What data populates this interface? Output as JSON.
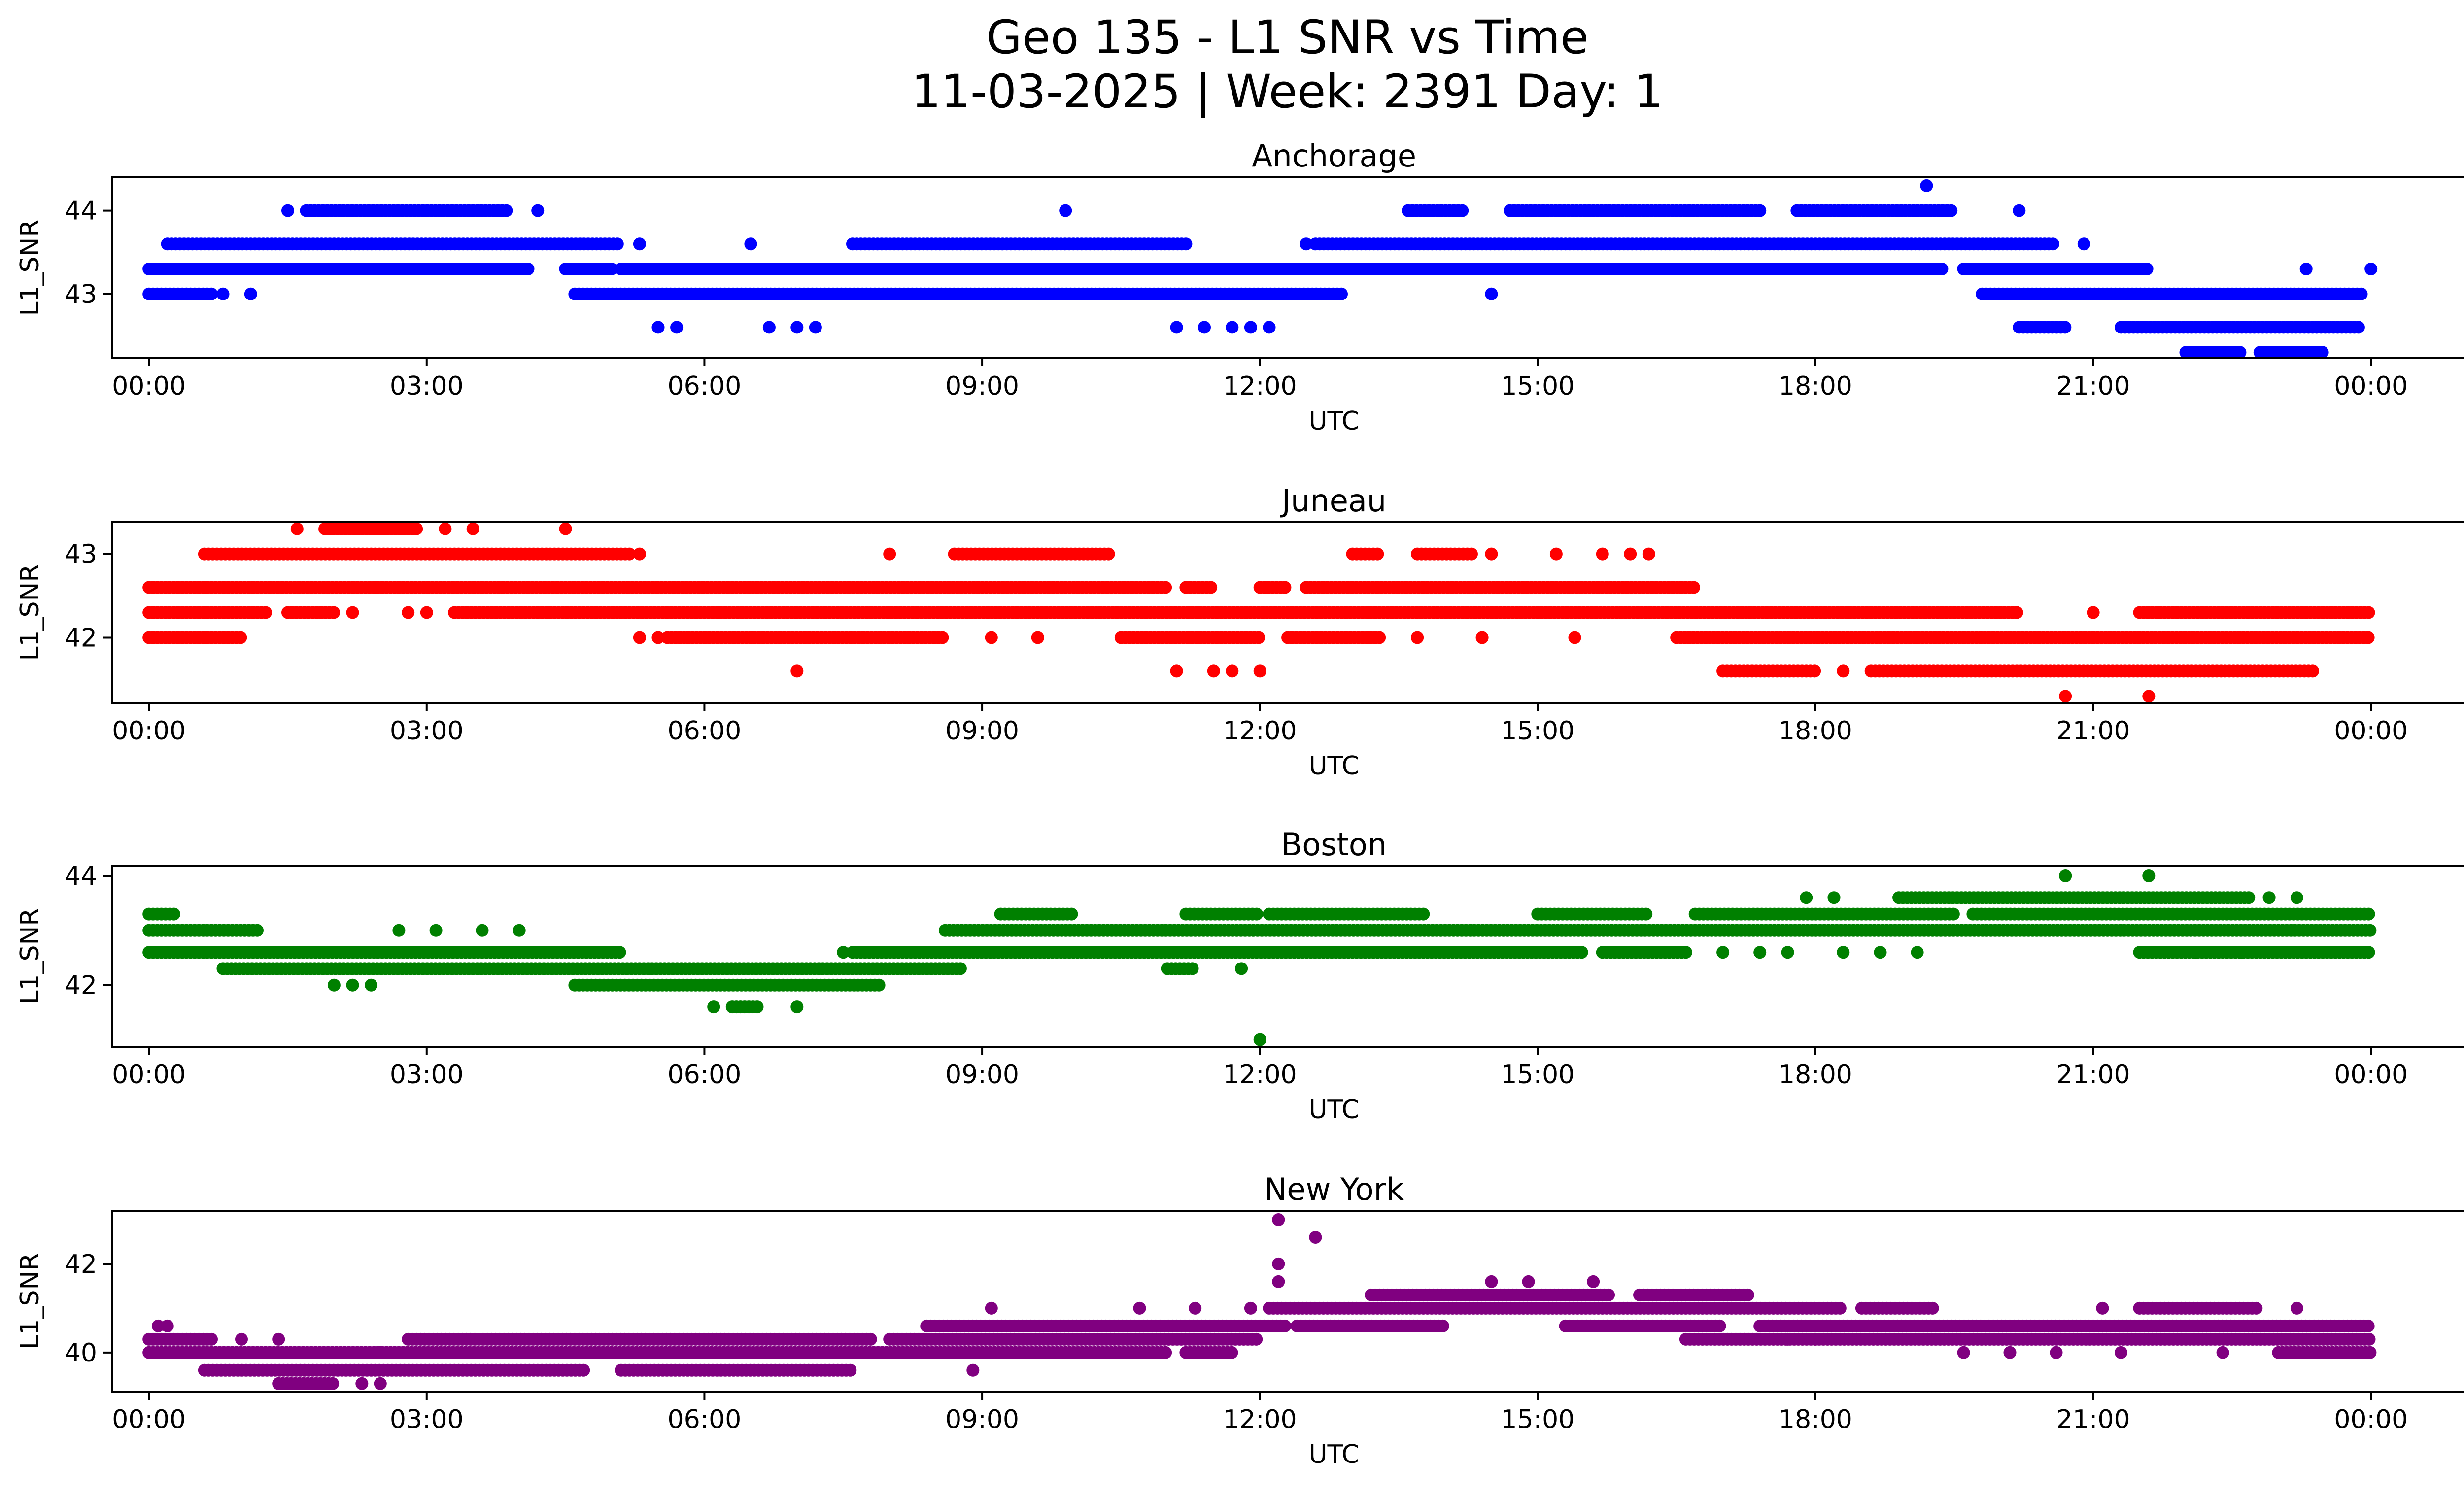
{
  "figure": {
    "title_line1": "Geo 135 - L1 SNR vs Time",
    "title_line2": "11-03-2025 | Week: 2391 Day: 1"
  },
  "chart_data": [
    {
      "type": "scatter",
      "title": "Anchorage",
      "color": "#0000ff",
      "xlabel": "UTC",
      "ylabel": "L1_SNR",
      "xlim": [
        -0.4,
        26.0
      ],
      "ylim": [
        42.23,
        44.4
      ],
      "xticks": [
        0,
        3,
        6,
        9,
        12,
        15,
        18,
        21,
        24
      ],
      "xtick_labels": [
        "00:00",
        "03:00",
        "06:00",
        "09:00",
        "12:00",
        "15:00",
        "18:00",
        "21:00",
        "00:00"
      ],
      "yticks": [
        43,
        44
      ],
      "bands": [
        {
          "y": 43.3,
          "ranges": [
            [
              0.0,
              4.1
            ],
            [
              4.5,
              5.0
            ],
            [
              5.1,
              19.4
            ],
            [
              19.6,
              21.6
            ]
          ]
        },
        {
          "y": 43.6,
          "ranges": [
            [
              0.2,
              5.1
            ],
            [
              7.6,
              11.2
            ],
            [
              12.6,
              20.6
            ]
          ]
        },
        {
          "y": 43.0,
          "ranges": [
            [
              0.0,
              0.7
            ],
            [
              4.6,
              12.9
            ],
            [
              19.8,
              23.9
            ]
          ]
        },
        {
          "y": 42.6,
          "ranges": [
            [
              20.2,
              20.7
            ],
            [
              21.3,
              23.9
            ]
          ]
        },
        {
          "y": 42.3,
          "ranges": [
            [
              22.0,
              22.6
            ],
            [
              22.8,
              23.5
            ]
          ]
        },
        {
          "y": 44.0,
          "ranges": [
            [
              1.7,
              3.9
            ],
            [
              13.6,
              14.2
            ],
            [
              14.7,
              17.4
            ],
            [
              17.8,
              19.5
            ]
          ]
        }
      ],
      "points": [
        [
          0.8,
          43.0
        ],
        [
          1.1,
          43.0
        ],
        [
          1.5,
          44.0
        ],
        [
          4.2,
          44.0
        ],
        [
          5.3,
          43.6
        ],
        [
          5.5,
          42.6
        ],
        [
          5.7,
          42.6
        ],
        [
          6.5,
          43.6
        ],
        [
          6.7,
          42.6
        ],
        [
          7.0,
          42.6
        ],
        [
          7.2,
          42.6
        ],
        [
          9.9,
          44.0
        ],
        [
          11.1,
          42.6
        ],
        [
          11.4,
          42.6
        ],
        [
          11.7,
          42.6
        ],
        [
          11.9,
          42.6
        ],
        [
          12.1,
          42.6
        ],
        [
          12.5,
          43.6
        ],
        [
          14.5,
          43.0
        ],
        [
          19.2,
          44.3
        ],
        [
          20.2,
          44.0
        ],
        [
          20.9,
          43.6
        ],
        [
          22.3,
          42.3
        ],
        [
          23.3,
          43.3
        ],
        [
          24.0,
          43.3
        ]
      ]
    },
    {
      "type": "scatter",
      "title": "Juneau",
      "color": "#ff0000",
      "xlabel": "UTC",
      "ylabel": "L1_SNR",
      "xlim": [
        -0.4,
        26.0
      ],
      "ylim": [
        41.22,
        43.38
      ],
      "xticks": [
        0,
        3,
        6,
        9,
        12,
        15,
        18,
        21,
        24
      ],
      "xtick_labels": [
        "00:00",
        "03:00",
        "06:00",
        "09:00",
        "12:00",
        "15:00",
        "18:00",
        "21:00",
        "00:00"
      ],
      "yticks": [
        42,
        43
      ],
      "bands": [
        {
          "y": 42.6,
          "ranges": [
            [
              0.0,
              11.0
            ],
            [
              11.2,
              11.5
            ],
            [
              12.0,
              12.3
            ],
            [
              12.5,
              16.7
            ]
          ]
        },
        {
          "y": 42.3,
          "ranges": [
            [
              0.0,
              1.3
            ],
            [
              1.5,
              2.0
            ],
            [
              3.3,
              20.2
            ],
            [
              21.5,
              24.0
            ]
          ]
        },
        {
          "y": 42.0,
          "ranges": [
            [
              0.0,
              1.0
            ],
            [
              5.6,
              8.6
            ],
            [
              10.5,
              12.0
            ],
            [
              12.3,
              13.3
            ],
            [
              16.5,
              24.0
            ]
          ]
        },
        {
          "y": 43.0,
          "ranges": [
            [
              0.6,
              5.2
            ],
            [
              8.7,
              10.4
            ],
            [
              13.0,
              13.3
            ],
            [
              13.7,
              14.3
            ]
          ]
        },
        {
          "y": 43.3,
          "ranges": [
            [
              1.9,
              2.9
            ]
          ]
        },
        {
          "y": 41.6,
          "ranges": [
            [
              17.0,
              18.0
            ],
            [
              18.6,
              23.4
            ]
          ]
        }
      ],
      "points": [
        [
          1.6,
          43.3
        ],
        [
          3.2,
          43.3
        ],
        [
          3.5,
          43.3
        ],
        [
          4.5,
          43.3
        ],
        [
          5.3,
          43.0
        ],
        [
          2.2,
          42.3
        ],
        [
          2.8,
          42.3
        ],
        [
          3.0,
          42.3
        ],
        [
          5.3,
          42.0
        ],
        [
          5.5,
          42.0
        ],
        [
          7.0,
          41.6
        ],
        [
          8.0,
          43.0
        ],
        [
          9.1,
          42.0
        ],
        [
          9.6,
          42.0
        ],
        [
          11.1,
          41.6
        ],
        [
          11.5,
          41.6
        ],
        [
          11.7,
          41.6
        ],
        [
          12.0,
          41.6
        ],
        [
          13.7,
          42.0
        ],
        [
          14.4,
          42.0
        ],
        [
          14.5,
          43.0
        ],
        [
          15.4,
          42.0
        ],
        [
          15.2,
          43.0
        ],
        [
          15.7,
          43.0
        ],
        [
          16.0,
          43.0
        ],
        [
          16.2,
          43.0
        ],
        [
          18.3,
          41.6
        ],
        [
          20.7,
          41.3
        ],
        [
          21.0,
          42.3
        ],
        [
          21.6,
          41.3
        ],
        [
          21.7,
          42.3
        ],
        [
          22.4,
          42.3
        ]
      ]
    },
    {
      "type": "scatter",
      "title": "Boston",
      "color": "#008000",
      "xlabel": "UTC",
      "ylabel": "L1_SNR",
      "xlim": [
        -0.4,
        26.0
      ],
      "ylim": [
        40.87,
        44.18
      ],
      "xticks": [
        0,
        3,
        6,
        9,
        12,
        15,
        18,
        21,
        24
      ],
      "xtick_labels": [
        "00:00",
        "03:00",
        "06:00",
        "09:00",
        "12:00",
        "15:00",
        "18:00",
        "21:00",
        "00:00"
      ],
      "yticks": [
        42,
        44
      ],
      "bands": [
        {
          "y": 43.3,
          "ranges": [
            [
              0.0,
              0.3
            ],
            [
              9.2,
              10.0
            ],
            [
              11.2,
              12.0
            ],
            [
              12.1,
              13.8
            ],
            [
              15.0,
              16.2
            ],
            [
              16.7,
              19.5
            ],
            [
              19.7,
              24.0
            ]
          ]
        },
        {
          "y": 43.0,
          "ranges": [
            [
              0.0,
              1.2
            ],
            [
              8.6,
              24.0
            ]
          ]
        },
        {
          "y": 42.6,
          "ranges": [
            [
              0.0,
              5.1
            ],
            [
              7.6,
              15.5
            ],
            [
              15.7,
              16.6
            ],
            [
              21.5,
              24.0
            ]
          ]
        },
        {
          "y": 42.3,
          "ranges": [
            [
              0.8,
              8.8
            ],
            [
              11.0,
              11.3
            ]
          ]
        },
        {
          "y": 42.0,
          "ranges": [
            [
              4.6,
              7.9
            ]
          ]
        },
        {
          "y": 41.6,
          "ranges": [
            [
              6.3,
              6.6
            ]
          ]
        },
        {
          "y": 43.6,
          "ranges": [
            [
              18.9,
              22.7
            ]
          ]
        }
      ],
      "points": [
        [
          2.0,
          42.0
        ],
        [
          2.2,
          42.0
        ],
        [
          2.4,
          42.0
        ],
        [
          2.7,
          43.0
        ],
        [
          3.1,
          43.0
        ],
        [
          3.6,
          43.0
        ],
        [
          4.0,
          43.0
        ],
        [
          6.1,
          41.6
        ],
        [
          7.0,
          41.6
        ],
        [
          7.5,
          42.6
        ],
        [
          11.8,
          42.3
        ],
        [
          12.0,
          41.0
        ],
        [
          17.0,
          42.6
        ],
        [
          17.4,
          42.6
        ],
        [
          17.7,
          42.6
        ],
        [
          18.3,
          42.6
        ],
        [
          18.7,
          42.6
        ],
        [
          19.1,
          42.6
        ],
        [
          17.9,
          43.6
        ],
        [
          18.2,
          43.6
        ],
        [
          20.7,
          44.0
        ],
        [
          21.6,
          44.0
        ],
        [
          22.1,
          42.6
        ],
        [
          22.6,
          42.6
        ],
        [
          22.9,
          43.6
        ],
        [
          23.2,
          43.6
        ]
      ]
    },
    {
      "type": "scatter",
      "title": "New York",
      "color": "#800080",
      "xlabel": "UTC",
      "ylabel": "L1_SNR",
      "xlim": [
        -0.4,
        26.0
      ],
      "ylim": [
        39.12,
        43.2
      ],
      "xticks": [
        0,
        3,
        6,
        9,
        12,
        15,
        18,
        21,
        24
      ],
      "xtick_labels": [
        "00:00",
        "03:00",
        "06:00",
        "09:00",
        "12:00",
        "15:00",
        "18:00",
        "21:00",
        "00:00"
      ],
      "yticks": [
        40,
        42
      ],
      "bands": [
        {
          "y": 40.0,
          "ranges": [
            [
              0.0,
              11.0
            ],
            [
              11.2,
              11.7
            ],
            [
              23.0,
              24.0
            ]
          ]
        },
        {
          "y": 40.3,
          "ranges": [
            [
              0.0,
              0.7
            ],
            [
              2.8,
              7.8
            ],
            [
              8.0,
              12.0
            ],
            [
              16.6,
              24.0
            ]
          ]
        },
        {
          "y": 39.6,
          "ranges": [
            [
              0.6,
              4.7
            ],
            [
              5.1,
              7.6
            ]
          ]
        },
        {
          "y": 40.6,
          "ranges": [
            [
              8.4,
              12.3
            ],
            [
              12.4,
              14.0
            ],
            [
              15.3,
              17.0
            ],
            [
              17.4,
              24.0
            ]
          ]
        },
        {
          "y": 41.0,
          "ranges": [
            [
              12.1,
              18.3
            ],
            [
              18.5,
              19.3
            ],
            [
              21.5,
              22.8
            ]
          ]
        },
        {
          "y": 41.3,
          "ranges": [
            [
              13.2,
              15.8
            ],
            [
              16.1,
              17.3
            ]
          ]
        },
        {
          "y": 39.3,
          "ranges": [
            [
              1.4,
              2.0
            ]
          ]
        }
      ],
      "points": [
        [
          0.1,
          40.6
        ],
        [
          0.2,
          40.6
        ],
        [
          1.0,
          40.3
        ],
        [
          1.4,
          40.3
        ],
        [
          2.3,
          39.3
        ],
        [
          2.5,
          39.3
        ],
        [
          2.5,
          40.0
        ],
        [
          8.9,
          39.6
        ],
        [
          9.1,
          41.0
        ],
        [
          10.7,
          41.0
        ],
        [
          11.3,
          41.0
        ],
        [
          11.9,
          41.0
        ],
        [
          12.2,
          43.0
        ],
        [
          12.2,
          42.0
        ],
        [
          12.2,
          41.6
        ],
        [
          12.6,
          42.6
        ],
        [
          14.5,
          41.6
        ],
        [
          14.9,
          41.6
        ],
        [
          15.6,
          41.6
        ],
        [
          17.7,
          40.3
        ],
        [
          18.0,
          40.3
        ],
        [
          19.6,
          40.0
        ],
        [
          20.1,
          40.0
        ],
        [
          20.6,
          40.0
        ],
        [
          21.1,
          41.0
        ],
        [
          21.3,
          40.0
        ],
        [
          22.4,
          40.0
        ],
        [
          23.2,
          41.0
        ]
      ]
    }
  ]
}
